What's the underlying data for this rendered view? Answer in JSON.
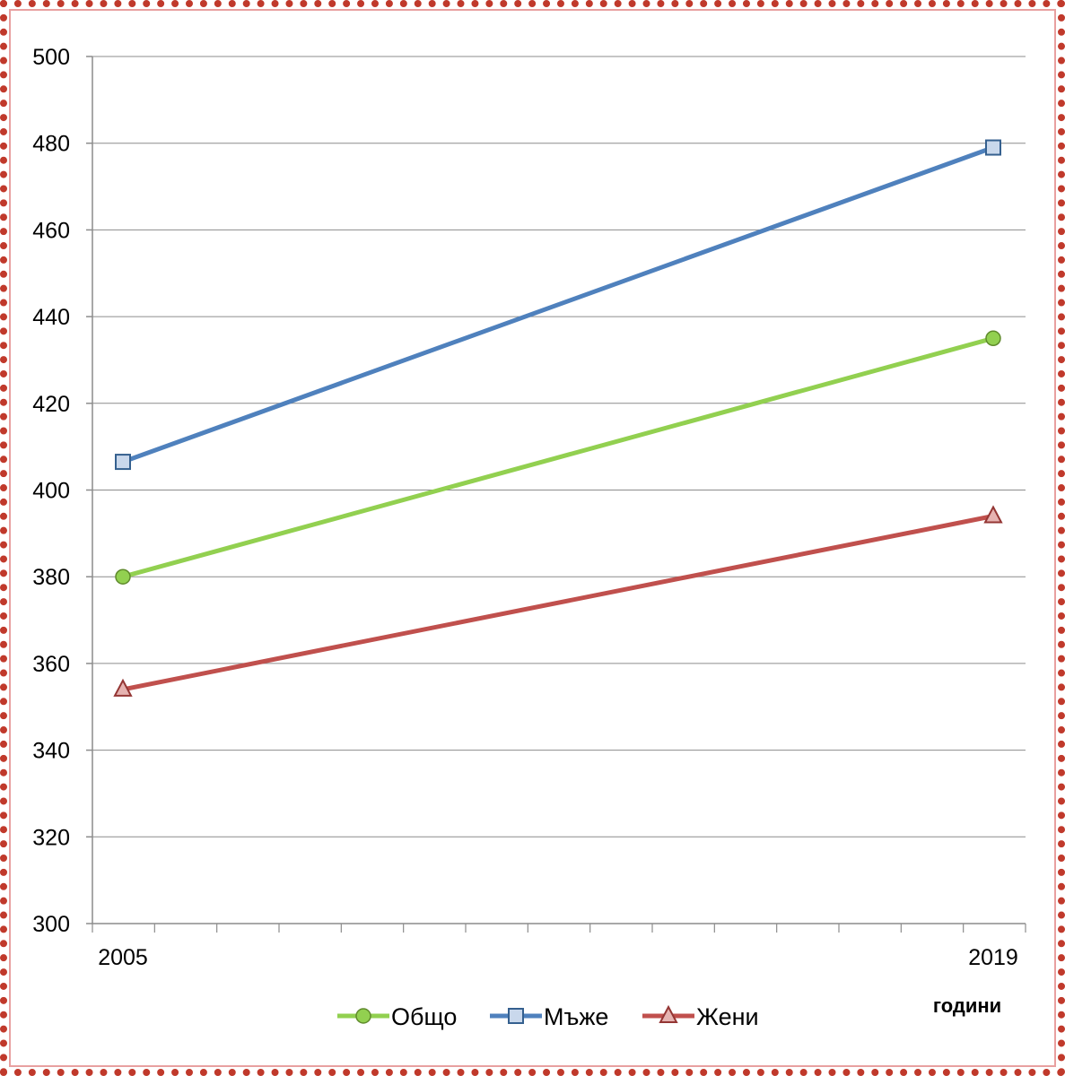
{
  "chart_data": {
    "type": "line",
    "x": [
      "2005",
      "2019"
    ],
    "xlabel": "години",
    "ylabel": "",
    "ylim": [
      300,
      500
    ],
    "yticks": [
      300,
      320,
      340,
      360,
      380,
      400,
      420,
      440,
      460,
      480,
      500
    ],
    "grid": true,
    "legend_position": "bottom",
    "series": [
      {
        "name": "Общо",
        "values": [
          380,
          435
        ],
        "color": "#92d050",
        "marker": "circle"
      },
      {
        "name": "Мъже",
        "values": [
          406.5,
          479
        ],
        "color": "#4f81bd",
        "marker": "square"
      },
      {
        "name": "Жени",
        "values": [
          354,
          394
        ],
        "color": "#c0504d",
        "marker": "triangle"
      }
    ]
  }
}
